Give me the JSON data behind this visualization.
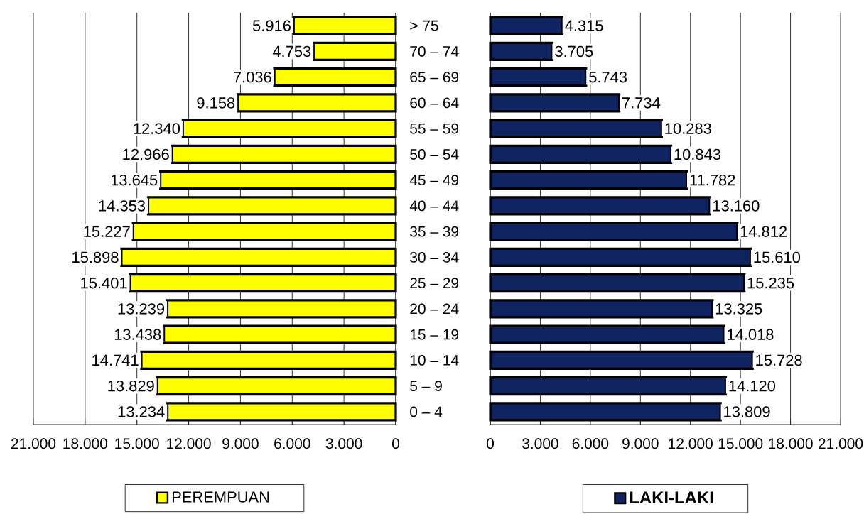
{
  "chart_data": [
    {
      "type": "bar",
      "orientation": "horizontal",
      "categories": [
        "> 75",
        "70 – 74",
        "65 – 69",
        "60 – 64",
        "55 – 59",
        "50 – 54",
        "45 – 49",
        "40 – 44",
        "35 – 39",
        "30 – 34",
        "25 – 29",
        "20 – 24",
        "15 – 19",
        "10 – 14",
        "5 – 9",
        "0 – 4"
      ],
      "series": [
        {
          "name": "PEREMPUAN",
          "color": "#ffff00",
          "values": [
            5916,
            4753,
            7036,
            9158,
            12340,
            12966,
            13645,
            14353,
            15227,
            15898,
            15401,
            13239,
            13438,
            14741,
            13829,
            13234
          ],
          "value_labels": [
            "5.916",
            "4.753",
            "7.036",
            "9.158",
            "12.340",
            "12.966",
            "13.645",
            "14.353",
            "15.227",
            "15.898",
            "15.401",
            "13.239",
            "13.438",
            "14.741",
            "13.829",
            "13.234"
          ]
        }
      ],
      "xlim": [
        21000,
        0
      ],
      "xticks": [
        {
          "value": 21000,
          "label": "21.000"
        },
        {
          "value": 18000,
          "label": "18.000"
        },
        {
          "value": 15000,
          "label": "15.000"
        },
        {
          "value": 12000,
          "label": "12.000"
        },
        {
          "value": 9000,
          "label": "9.000"
        },
        {
          "value": 6000,
          "label": "6.000"
        },
        {
          "value": 3000,
          "label": "3.000"
        },
        0
      ],
      "grid": "x",
      "legend": "bottom"
    },
    {
      "type": "bar",
      "orientation": "horizontal",
      "categories": [
        null,
        null,
        null,
        null,
        null,
        null,
        null,
        null,
        null,
        null,
        null,
        null,
        null,
        null,
        null,
        null
      ],
      "series": [
        {
          "name": "LAKI-LAKI",
          "color": "#0f2361",
          "values": [
            4315,
            3705,
            5743,
            7734,
            10283,
            10843,
            11782,
            13160,
            14812,
            15610,
            15235,
            13325,
            14018,
            15728,
            14120,
            13809
          ],
          "value_labels": [
            "4.315",
            "3.705",
            "5.743",
            "7.734",
            "10.283",
            "10.843",
            "11.782",
            "13.160",
            "14.812",
            "15.610",
            "15.235",
            "13.325",
            "14.018",
            "15.728",
            "14.120",
            "13.809"
          ]
        }
      ],
      "xlim": [
        0,
        21000
      ],
      "xticks": [
        0,
        {
          "value": 3000,
          "label": "3.000"
        },
        {
          "value": 6000,
          "label": "6.000"
        },
        {
          "value": 9000,
          "label": "9.000"
        },
        {
          "value": 12000,
          "label": "12.000"
        },
        {
          "value": 15000,
          "label": "15.000"
        },
        {
          "value": 18000,
          "label": "18.000"
        },
        {
          "value": 21000,
          "label": "21.000"
        }
      ],
      "grid": "x",
      "legend": "bottom",
      "tick_labels": "x"
    }
  ]
}
